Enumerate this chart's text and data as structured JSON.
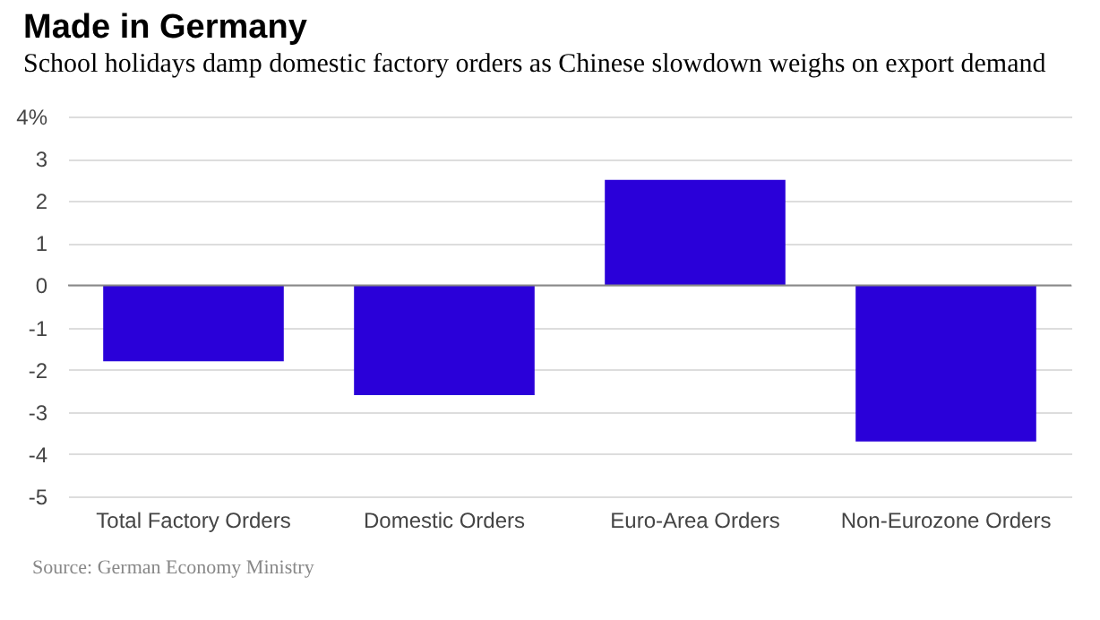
{
  "chart_data": {
    "type": "bar",
    "title": "Made in Germany",
    "subtitle": "School holidays damp domestic factory orders as Chinese slowdown weighs on export demand",
    "categories": [
      "Total Factory Orders",
      "Domestic Orders",
      "Euro-Area Orders",
      "Non-Eurozone Orders"
    ],
    "values": [
      -1.8,
      -2.6,
      2.5,
      -3.7
    ],
    "color": "#2a00d9",
    "ylim": [
      -5,
      4
    ],
    "yticks": [
      -5,
      -4,
      -3,
      -2,
      -1,
      0,
      1,
      2,
      3,
      {
        "value": 4,
        "label": "4%"
      }
    ],
    "grid": "y",
    "annotations": [
      "Source: German Economy Ministry"
    ]
  }
}
